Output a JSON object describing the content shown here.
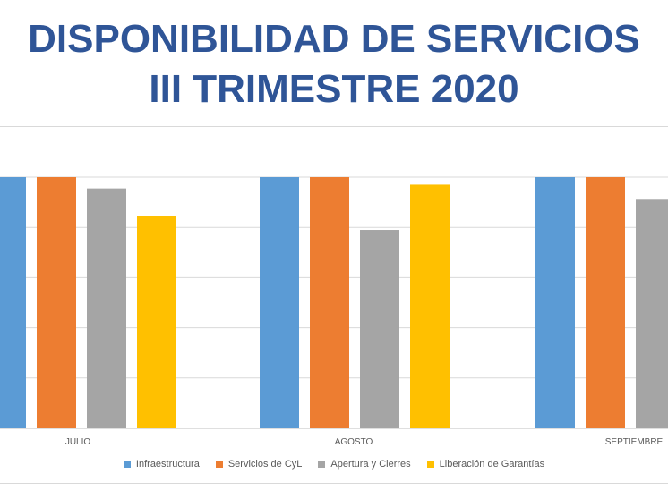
{
  "chart_data": {
    "type": "bar",
    "title_lines": [
      "DISPONIBILIDAD DE SERVICIOS",
      "III TRIMESTRE 2020"
    ],
    "categories": [
      "JULIO",
      "AGOSTO",
      "SEPTIEMBRE"
    ],
    "series": [
      {
        "name": "Infraestructura",
        "color": "#5b9bd5",
        "values": [
          100,
          100,
          100
        ]
      },
      {
        "name": "Servicios de CyL",
        "color": "#ed7d31",
        "values": [
          100,
          100,
          100
        ]
      },
      {
        "name": "Apertura y Cierres",
        "color": "#a5a5a5",
        "values": [
          95.5,
          79,
          91
        ]
      },
      {
        "name": "Liberación de Garantías",
        "color": "#ffc000",
        "values": [
          84.5,
          97,
          null
        ]
      }
    ],
    "ylim": [
      0,
      100
    ],
    "grid": true,
    "legend_position": "bottom"
  }
}
